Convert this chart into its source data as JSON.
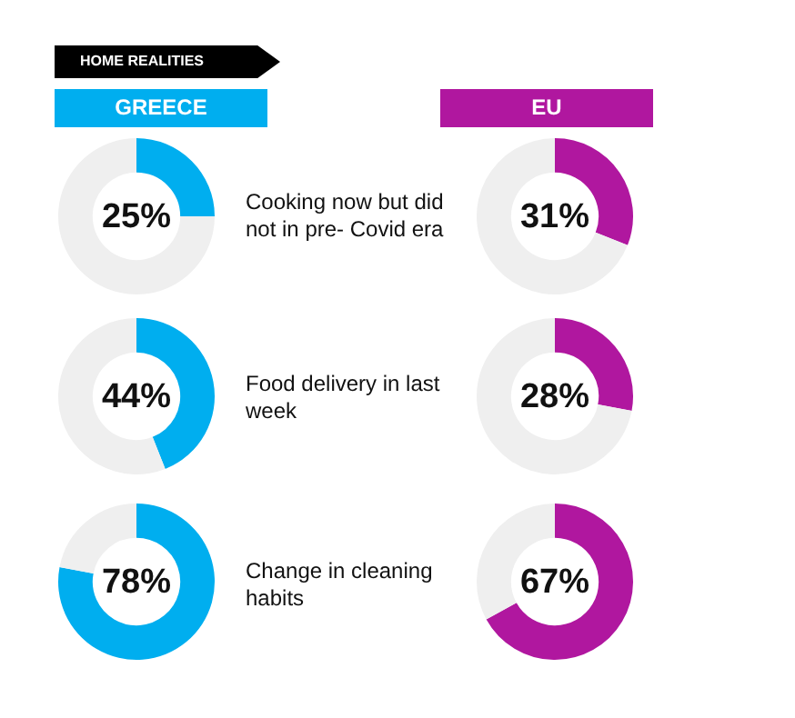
{
  "chart_data": [
    {
      "type": "other",
      "title": "HOME REALITIES",
      "annotations": [
        "GREECE",
        "EU",
        "Cooking now but did not in pre- Covid era",
        "Food delivery in last week",
        "Change in cleaning habits"
      ]
    },
    {
      "type": "donut",
      "categories": [
        null,
        null
      ],
      "values": [
        25,
        75
      ],
      "colors": [
        "#00aeef",
        "#efefef"
      ],
      "annotations": [
        "25%"
      ]
    },
    {
      "type": "donut",
      "categories": [
        null,
        null
      ],
      "values": [
        31,
        69
      ],
      "colors": [
        "#b0179f",
        "#efefef"
      ],
      "annotations": [
        "31%"
      ]
    },
    {
      "type": "donut",
      "categories": [
        null,
        null
      ],
      "values": [
        44,
        56
      ],
      "colors": [
        "#00aeef",
        "#efefef"
      ],
      "annotations": [
        "44%"
      ]
    },
    {
      "type": "donut",
      "categories": [
        null,
        null
      ],
      "values": [
        28,
        72
      ],
      "colors": [
        "#b0179f",
        "#efefef"
      ],
      "annotations": [
        "28%"
      ]
    },
    {
      "type": "donut",
      "categories": [
        null,
        null
      ],
      "values": [
        78,
        22
      ],
      "colors": [
        "#00aeef",
        "#efefef"
      ],
      "annotations": [
        "78%"
      ]
    },
    {
      "type": "donut",
      "categories": [
        null,
        null
      ],
      "values": [
        67,
        33
      ],
      "colors": [
        "#b0179f",
        "#efefef"
      ],
      "annotations": [
        "67%"
      ]
    }
  ]
}
